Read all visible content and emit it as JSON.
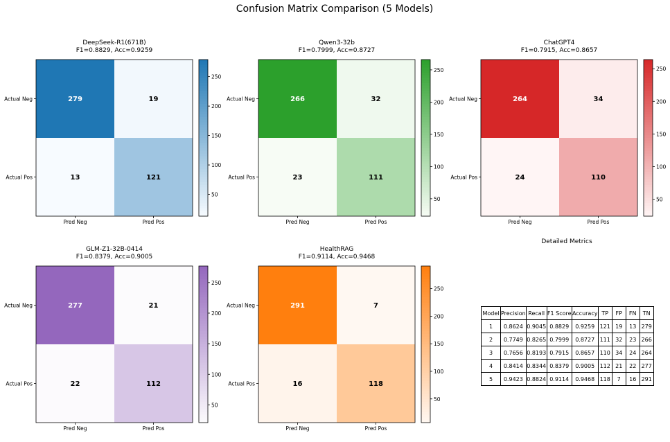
{
  "page": {
    "title": "Confusion Matrix Comparison (5 Models)"
  },
  "chart_data": [
    {
      "type": "heatmap",
      "title": "DeepSeek-R1(671B)",
      "subtitle": "F1=0.8829, Acc=0.9259",
      "row_labels": [
        "Actual Neg",
        "Actual Pos"
      ],
      "col_labels": [
        "Pred Neg",
        "Pred Pos"
      ],
      "values": [
        [
          279,
          19
        ],
        [
          13,
          121
        ]
      ],
      "cmap": [
        "#f7fbff",
        "#1f77b4"
      ],
      "colorbar_ticks": [
        50,
        100,
        150,
        200,
        250
      ]
    },
    {
      "type": "heatmap",
      "title": "Qwen3-32b",
      "subtitle": "F1=0.7999, Acc=0.8727",
      "row_labels": [
        "Actual Neg",
        "Actual Pos"
      ],
      "col_labels": [
        "Pred Neg",
        "Pred Pos"
      ],
      "values": [
        [
          266,
          32
        ],
        [
          23,
          111
        ]
      ],
      "cmap": [
        "#f7fcf5",
        "#2ca02c"
      ],
      "colorbar_ticks": [
        50,
        100,
        150,
        200,
        250
      ]
    },
    {
      "type": "heatmap",
      "title": "ChatGPT4",
      "subtitle": "F1=0.7915, Acc=0.8657",
      "row_labels": [
        "Actual Neg",
        "Actual Pos"
      ],
      "col_labels": [
        "Pred Neg",
        "Pred Pos"
      ],
      "values": [
        [
          264,
          34
        ],
        [
          24,
          110
        ]
      ],
      "cmap": [
        "#fff5f5",
        "#d62728"
      ],
      "colorbar_ticks": [
        50,
        100,
        150,
        200,
        250
      ]
    },
    {
      "type": "heatmap",
      "title": "GLM-Z1-32B-0414",
      "subtitle": "F1=0.8379, Acc=0.9005",
      "row_labels": [
        "Actual Neg",
        "Actual Pos"
      ],
      "col_labels": [
        "Pred Neg",
        "Pred Pos"
      ],
      "values": [
        [
          277,
          21
        ],
        [
          22,
          112
        ]
      ],
      "cmap": [
        "#fcfbfd",
        "#9467bd"
      ],
      "colorbar_ticks": [
        50,
        100,
        150,
        200,
        250
      ]
    },
    {
      "type": "heatmap",
      "title": "HealthRAG",
      "subtitle": "F1=0.9114, Acc=0.9468",
      "row_labels": [
        "Actual Neg",
        "Actual Pos"
      ],
      "col_labels": [
        "Pred Neg",
        "Pred Pos"
      ],
      "values": [
        [
          291,
          7
        ],
        [
          16,
          118
        ]
      ],
      "cmap": [
        "#fff8f2",
        "#ff7f0e"
      ],
      "colorbar_ticks": [
        50,
        100,
        150,
        200,
        250
      ]
    },
    {
      "type": "table",
      "title": "Detailed Metrics",
      "columns": [
        "Model",
        "Precision",
        "Recall",
        "F1 Score",
        "Accuracy",
        "TP",
        "FP",
        "FN",
        "TN"
      ],
      "rows": [
        [
          "1",
          "0.8624",
          "0.9045",
          "0.8829",
          "0.9259",
          "121",
          "19",
          "13",
          "279"
        ],
        [
          "2",
          "0.7749",
          "0.8265",
          "0.7999",
          "0.8727",
          "111",
          "32",
          "23",
          "266"
        ],
        [
          "3",
          "0.7656",
          "0.8193",
          "0.7915",
          "0.8657",
          "110",
          "34",
          "24",
          "264"
        ],
        [
          "4",
          "0.8414",
          "0.8344",
          "0.8379",
          "0.9005",
          "112",
          "21",
          "22",
          "277"
        ],
        [
          "5",
          "0.9423",
          "0.8824",
          "0.9114",
          "0.9468",
          "118",
          "7",
          "16",
          "291"
        ]
      ]
    }
  ]
}
